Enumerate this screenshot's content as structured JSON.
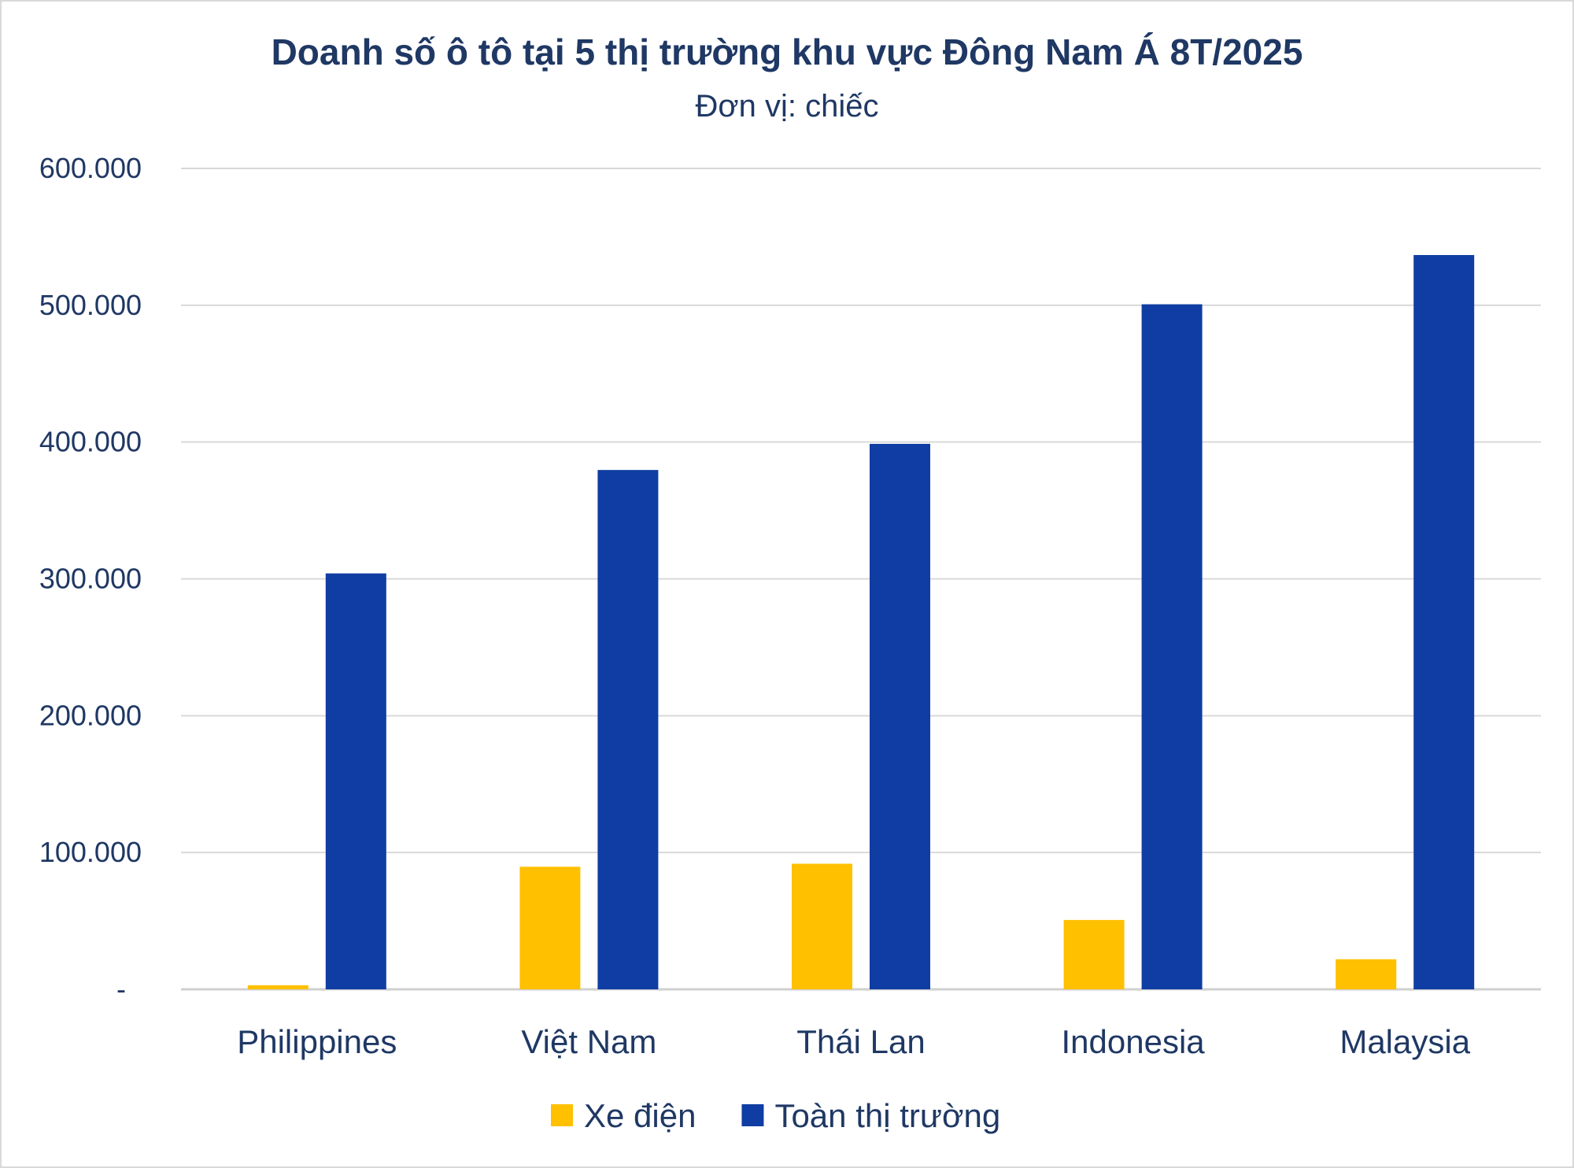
{
  "chart_data": {
    "type": "bar",
    "title": "Doanh số ô tô tại 5 thị trường khu vực Đông Nam Á 8T/2025",
    "subtitle": "Đơn vị: chiếc",
    "xlabel": "",
    "ylabel": "",
    "categories": [
      "Philippines",
      "Việt Nam",
      "Thái Lan",
      "Indonesia",
      "Malaysia"
    ],
    "series": [
      {
        "name": "Xe điện",
        "color": "#FFC000",
        "values": [
          3000,
          89600,
          91800,
          50700,
          22000
        ]
      },
      {
        "name": "Toàn thị trường",
        "color": "#0F3DA3",
        "values": [
          304000,
          379600,
          398700,
          500700,
          536700
        ]
      }
    ],
    "ylim": [
      0,
      600000
    ],
    "yticks": [
      0,
      100000,
      200000,
      300000,
      400000,
      500000,
      600000
    ],
    "ytick_labels": [
      "-",
      "100.000",
      "200.000",
      "300.000",
      "400.000",
      "500.000",
      "600.000"
    ],
    "grid": true,
    "legend_position": "bottom"
  }
}
